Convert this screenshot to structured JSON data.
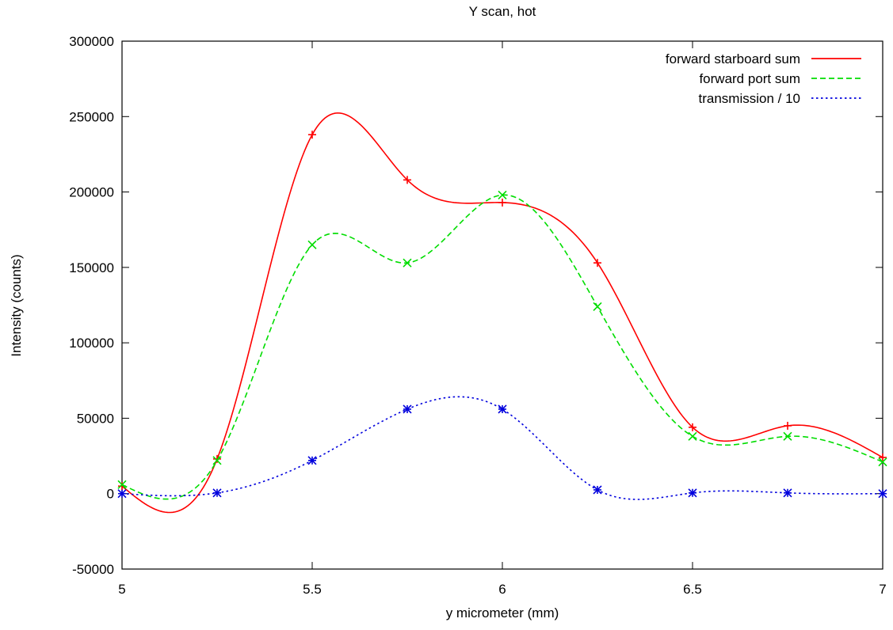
{
  "chart_data": {
    "type": "line",
    "title": "Y scan, hot",
    "xlabel": "y micrometer (mm)",
    "ylabel": "Intensity (counts)",
    "xlim": [
      5,
      7
    ],
    "ylim": [
      -50000,
      300000
    ],
    "xticks": [
      5,
      5.5,
      6,
      6.5,
      7
    ],
    "xtick_labels": [
      "5",
      "5.5",
      "6",
      "6.5",
      "7"
    ],
    "yticks": [
      -50000,
      0,
      50000,
      100000,
      150000,
      200000,
      250000,
      300000
    ],
    "ytick_labels": [
      "-50000",
      "0",
      "50000",
      "100000",
      "150000",
      "200000",
      "250000",
      "300000"
    ],
    "grid": false,
    "legend_position": "top-right",
    "x": [
      5,
      5.25,
      5.5,
      5.75,
      6,
      6.25,
      6.5,
      6.75,
      7
    ],
    "series": [
      {
        "name": "forward starboard sum",
        "color": "#ff0000",
        "dash": "solid",
        "marker": "plus",
        "values": [
          5000,
          23000,
          238000,
          208000,
          193000,
          153000,
          44000,
          45000,
          24000
        ]
      },
      {
        "name": "forward port sum",
        "color": "#00dd00",
        "dash": "dashed",
        "marker": "cross",
        "values": [
          6000,
          22000,
          165000,
          153000,
          198000,
          124000,
          38000,
          38000,
          21000
        ]
      },
      {
        "name": "transmission / 10",
        "color": "#0000dd",
        "dash": "dotted",
        "marker": "star",
        "values": [
          0,
          500,
          22000,
          56000,
          56000,
          2500,
          500,
          500,
          0
        ]
      }
    ]
  }
}
